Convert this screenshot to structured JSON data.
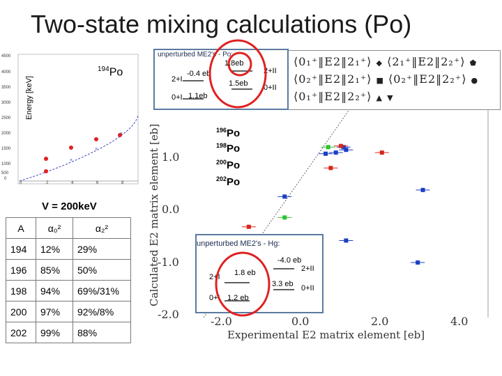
{
  "title": "Two-state mixing calculations (Po)",
  "energy_plot": {
    "ylabel": "Energy [keV]",
    "yticks": [
      "4500",
      "4000",
      "3500",
      "3000",
      "2500",
      "2000",
      "1500",
      "1000",
      "500",
      "0"
    ],
    "xticks": [
      "0",
      "2",
      "4",
      "6",
      "8"
    ],
    "isotope_label_mass": "194",
    "isotope_label_elem": "Po"
  },
  "inset_top": {
    "header": "unperturbed ME2's - Po:",
    "me_top": "1.8eb",
    "me_neg": "-0.4 eb",
    "me_mid": "1.5eb",
    "me_low": "1.1eb",
    "lvl_2I": "2+I",
    "lvl_2II": "2+II",
    "lvl_0I": "0+I",
    "lvl_0II": "0+II"
  },
  "legend": {
    "rows": [
      {
        "text": "⟨0₁⁺‖E2‖2₁⁺⟩",
        "sym": "◆",
        "text2": "⟨2₁⁺‖E2‖2₂⁺⟩",
        "sym2": "⬟"
      },
      {
        "text": "⟨0₂⁺‖E2‖2₁⁺⟩",
        "sym": "■",
        "text2": "⟨0₂⁺‖E2‖2₂⁺⟩",
        "sym2": "●"
      },
      {
        "text": "⟨0₁⁺‖E2‖2₂⁺⟩",
        "sym": "▲",
        "text2": "",
        "sym2": "▼"
      }
    ]
  },
  "isotopes": [
    {
      "mass": "196",
      "elem": "Po"
    },
    {
      "mass": "198",
      "elem": "Po"
    },
    {
      "mass": "200",
      "elem": "Po"
    },
    {
      "mass": "202",
      "elem": "Po"
    }
  ],
  "v_label": "V = 200keV",
  "table": {
    "headers": [
      "A",
      "α₀²",
      "α₂²"
    ],
    "rows": [
      [
        "194",
        "12%",
        "29%"
      ],
      [
        "196",
        "85%",
        "50%"
      ],
      [
        "198",
        "94%",
        "69%/31%"
      ],
      [
        "200",
        "97%",
        "92%/8%"
      ],
      [
        "202",
        "99%",
        "88%"
      ]
    ]
  },
  "inset_bot": {
    "header": "unperturbed ME2's - Hg:",
    "me_top": "-4.0 eb",
    "me_left": "1.8 eb",
    "me_right": "3.3 eb",
    "me_low": "1.2 eb",
    "lvl_2I": "2+I",
    "lvl_2II": "2+II",
    "lvl_0I": "0+I",
    "lvl_0II": "0+II"
  },
  "main_plot": {
    "xlabel": "Experimental E2 matrix element [eb]",
    "ylabel": "Calculated E2 matrix element [eb]",
    "yticks": [
      "1.0",
      "0.0",
      "-1.0",
      "-2.0"
    ],
    "xticks": [
      "-2.0",
      "0.0",
      "2.0",
      "4.0"
    ]
  },
  "colors": {
    "blue": "#1b3fc4",
    "red": "#d8261b",
    "green": "#2fc22f",
    "circle": "#e02020"
  },
  "chart_data": {
    "type": "scatter",
    "xlabel": "Experimental E2 matrix element [eb]",
    "ylabel": "Calculated E2 matrix element [eb]",
    "xlim": [
      -2.2,
      4.2
    ],
    "ylim": [
      -2.0,
      1.8
    ],
    "grid": false,
    "series": [
      {
        "name": "196Po",
        "color": "#1b3fc4",
        "points": [
          [
            1.2,
            1.0
          ],
          [
            1.35,
            1.1
          ],
          [
            2.9,
            0.32
          ],
          [
            0.2,
            0.2
          ],
          [
            1.4,
            -0.6
          ],
          [
            2.8,
            -1.0
          ]
        ]
      },
      {
        "name": "198Po",
        "color": "#d8261b",
        "points": [
          [
            1.3,
            1.12
          ],
          [
            2.1,
            1.0
          ],
          [
            1.1,
            0.72
          ],
          [
            -0.5,
            -0.35
          ]
        ]
      },
      {
        "name": "200Po",
        "color": "#2fc22f",
        "points": [
          [
            1.05,
            1.1
          ],
          [
            0.2,
            -0.18
          ]
        ]
      },
      {
        "name": "202Po",
        "color": "#1b3fc4",
        "points": [
          [
            1.0,
            0.98
          ],
          [
            1.4,
            1.05
          ]
        ]
      }
    ]
  }
}
